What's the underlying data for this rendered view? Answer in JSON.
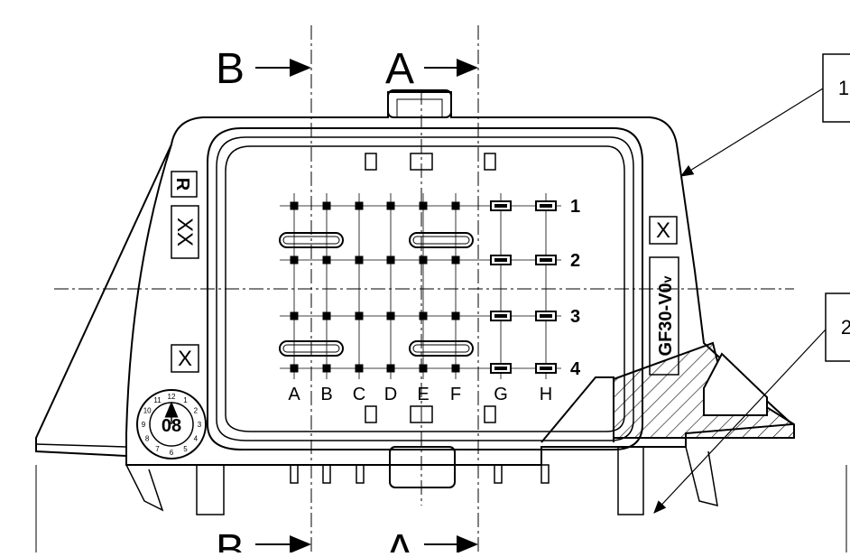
{
  "section_markers": {
    "top_left": "B",
    "top_right": "A",
    "bottom_left": "B",
    "bottom_right": "A"
  },
  "columns": [
    "A",
    "B",
    "C",
    "D",
    "E",
    "F",
    "G",
    "H"
  ],
  "rows": [
    "1",
    "2",
    "3",
    "4"
  ],
  "part_code": "GF30-V0",
  "part_code_suffix": "v",
  "marks": {
    "r_mark": "R",
    "xx_mark": "XX",
    "x_mark": "X"
  },
  "callouts": [
    "1",
    "2"
  ],
  "date_dial": {
    "center_digits": "08",
    "ring_numbers": [
      "1",
      "2",
      "3",
      "4",
      "5",
      "6",
      "7",
      "8",
      "9",
      "10",
      "11",
      "12"
    ]
  },
  "colors": {
    "line": "#000000",
    "background": "#ffffff"
  }
}
